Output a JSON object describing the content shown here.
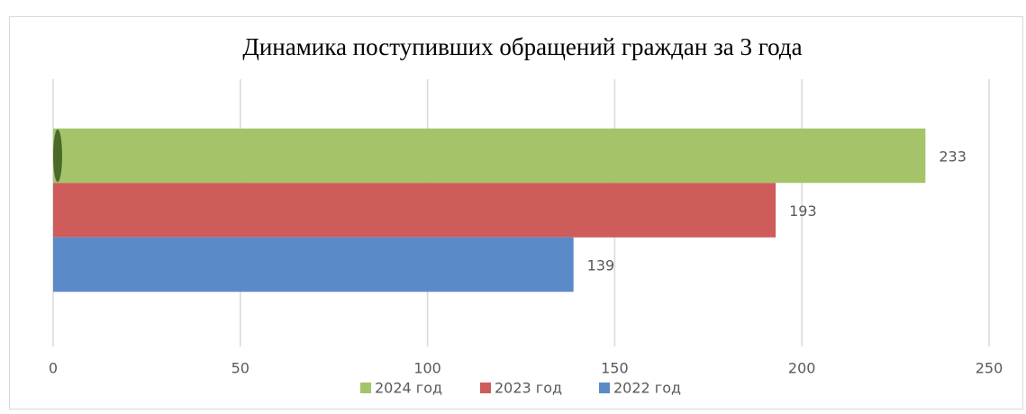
{
  "chart_data": {
    "type": "bar",
    "orientation": "horizontal",
    "title": "Динамика поступивших обращений граждан за 3 года",
    "categories": [
      null
    ],
    "series": [
      {
        "name": "2024 год",
        "color": "#a5c46a",
        "values": [
          233
        ]
      },
      {
        "name": "2023 год",
        "color": "#cd5c5a",
        "values": [
          193
        ]
      },
      {
        "name": "2022 год",
        "color": "#5b8ac9",
        "values": [
          139
        ]
      }
    ],
    "xlim": [
      0,
      250
    ],
    "xticks": [
      0,
      50,
      100,
      150,
      200,
      250
    ],
    "grid": true,
    "legend": "bottom"
  }
}
